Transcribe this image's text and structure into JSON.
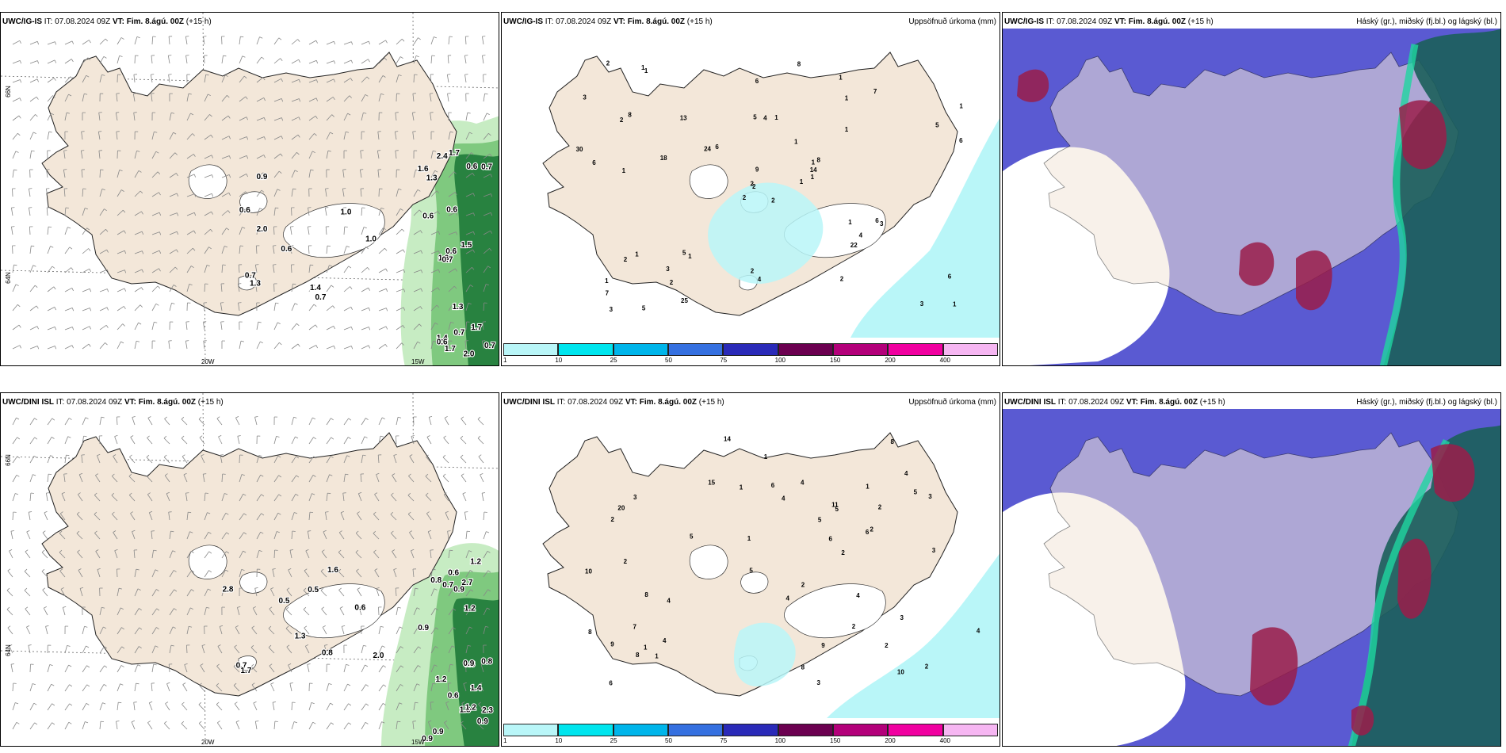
{
  "common": {
    "it_label": "IT:",
    "it_value": "07.08.2024 09Z",
    "vt_label": "VT: Fim. 8.ágú. 00Z",
    "lead": "(+15 h)"
  },
  "rows": [
    {
      "model": "UWC/IG-IS"
    },
    {
      "model": "UWC/DINI ISL"
    }
  ],
  "precip_title": "Uppsöfnuð úrkoma (mm)",
  "cloud_title": "Háský (gr.), miðský (fj.bl.) og lágský (bl.)",
  "grid_labels": {
    "lat66": "66N",
    "lat64": "64N",
    "lon20": "20W",
    "lon15": "15W"
  },
  "colors": {
    "land": "#f3e7d9",
    "sea": "#ffffff",
    "precip_shade": "#b9f6f8",
    "wind_light": "#c7ecc3",
    "wind_mid": "#7fc97f",
    "wind_dark": "#1f7a3a",
    "cloud_high": "#5a5ad2",
    "cloud_mid": "#9a1d4a",
    "cloud_low": "#1b5f5a"
  },
  "legend": {
    "colors": [
      "#b9f6f8",
      "#00e5ee",
      "#00b5ea",
      "#3570e0",
      "#2a2ab8",
      "#6b0050",
      "#b3007a",
      "#f000a0",
      "#f6b6f2"
    ],
    "labels": [
      "1",
      "10",
      "25",
      "50",
      "75",
      "100",
      "150",
      "200",
      "400"
    ]
  },
  "map_values": {
    "r1_wind": [
      "0.7",
      "0.9",
      "0.7",
      "0.6",
      "1.0",
      "1.4",
      "1.0",
      "2.0",
      "0.6",
      "1.3",
      "1.7",
      "2.0",
      "1.4",
      "1.7",
      "2.4",
      "1.3",
      "1.3",
      "0.7",
      "1.7",
      "0.6",
      "0.7",
      "0.7",
      "0.6",
      "1.3",
      "0.6",
      "1.5",
      "0.6",
      "0.6",
      "0.7",
      "1.6"
    ],
    "r1_precip": [
      "2",
      "2",
      "2",
      "1",
      "1",
      "1",
      "1",
      "1",
      "1",
      "1",
      "1",
      "1",
      "1",
      "1",
      "2",
      "1",
      "5",
      "5",
      "1",
      "1",
      "6",
      "7",
      "2",
      "4",
      "8",
      "3",
      "8",
      "6",
      "6",
      "1",
      "6",
      "2",
      "2",
      "9",
      "13",
      "7",
      "5",
      "3",
      "6",
      "6",
      "8",
      "24",
      "18",
      "22",
      "25",
      "30",
      "14",
      "3",
      "4",
      "1",
      "2",
      "5",
      "3",
      "4",
      "2",
      "3",
      "1",
      "2"
    ],
    "r2_wind": [
      "0.8",
      "2.8",
      "0.7",
      "1.6",
      "0.5",
      "1.7",
      "1.3",
      "2.0",
      "0.6",
      "0.5",
      "0.6",
      "0.6",
      "0.9",
      "1.2",
      "0.9",
      "1.2",
      "0.8",
      "2.7",
      "2.3",
      "1.8",
      "0.7",
      "0.9",
      "1.4",
      "1.2",
      "0.9",
      "0.8",
      "0.9",
      "0.9",
      "1.2",
      "0.8"
    ],
    "r2_precip": [
      "2",
      "2",
      "1",
      "1",
      "5",
      "1",
      "4",
      "4",
      "3",
      "1",
      "3",
      "8",
      "2",
      "2",
      "2",
      "3",
      "8",
      "4",
      "6",
      "10",
      "2",
      "2",
      "4",
      "5",
      "7",
      "6",
      "1",
      "2",
      "14",
      "9",
      "9",
      "10",
      "8",
      "15",
      "20",
      "11",
      "8",
      "6",
      "4",
      "1",
      "4",
      "3",
      "5",
      "5",
      "6",
      "4",
      "3",
      "5",
      "2",
      "4",
      "8"
    ]
  }
}
